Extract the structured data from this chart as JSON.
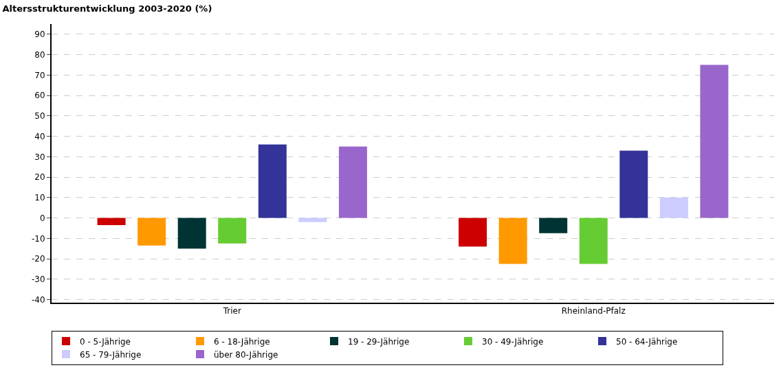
{
  "chart_data": {
    "type": "bar",
    "title": "Altersstrukturentwicklung 2003-2020 (%)",
    "categories": [
      "Trier",
      "Rheinland-Pfalz"
    ],
    "series": [
      {
        "name": "0 - 5-Jährige",
        "color": "#cc0000",
        "values": [
          -3.5,
          -14
        ]
      },
      {
        "name": "6 - 18-Jährige",
        "color": "#ff9900",
        "values": [
          -13.5,
          -22.5
        ]
      },
      {
        "name": "19 - 29-Jährige",
        "color": "#003333",
        "values": [
          -15,
          -7.5
        ]
      },
      {
        "name": "30 - 49-Jährige",
        "color": "#66cc33",
        "values": [
          -12.5,
          -22.5
        ]
      },
      {
        "name": "50 - 64-Jährige",
        "color": "#333399",
        "values": [
          36,
          33
        ]
      },
      {
        "name": "65 - 79-Jährige",
        "color": "#ccccff",
        "values": [
          -2,
          10
        ]
      },
      {
        "name": "über 80-Jährige",
        "color": "#9966cc",
        "values": [
          35,
          75
        ]
      }
    ],
    "ylim": [
      -41.5,
      95
    ],
    "yticks": [
      -40,
      -30,
      -20,
      -10,
      0,
      10,
      20,
      30,
      40,
      50,
      60,
      70,
      80,
      90
    ],
    "grid": "y",
    "legend": "bottom"
  }
}
